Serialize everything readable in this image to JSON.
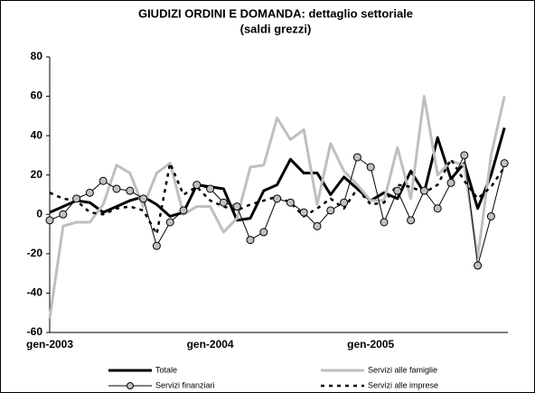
{
  "chart_data": {
    "type": "line",
    "title": "GIUDIZI ORDINI E DOMANDA: dettaglio settoriale",
    "subtitle": "(saldi grezzi)",
    "categories": [
      "gen-2003",
      null,
      null,
      null,
      null,
      null,
      null,
      null,
      null,
      null,
      null,
      null,
      "gen-2004",
      null,
      null,
      null,
      null,
      null,
      null,
      null,
      null,
      null,
      null,
      null,
      "gen-2005",
      null,
      null,
      null,
      null,
      null,
      null,
      null,
      null,
      null,
      null
    ],
    "ylim": [
      -60,
      80
    ],
    "yticks": [
      -60,
      -40,
      -20,
      0,
      20,
      40,
      60,
      80
    ],
    "grid": false,
    "legend": "bottom",
    "series": [
      {
        "name": "Totale",
        "color": "#000000",
        "width": 3,
        "dashed": false,
        "marker": false,
        "values": [
          1,
          4,
          7,
          6,
          1,
          4,
          7,
          9,
          5,
          -1,
          1,
          15,
          14,
          13,
          -3,
          -2,
          12,
          15,
          28,
          21,
          21,
          10,
          19,
          13,
          7,
          11,
          8,
          22,
          11,
          39,
          18,
          26,
          3,
          20,
          44
        ]
      },
      {
        "name": "Servizi alle famiglie",
        "color": "#bfbfbf",
        "width": 3,
        "dashed": false,
        "marker": false,
        "values": [
          -53,
          -6,
          -4,
          -4,
          5,
          25,
          21,
          4,
          21,
          26,
          0,
          4,
          4,
          -9,
          -2,
          24,
          25,
          49,
          38,
          43,
          5,
          36,
          22,
          15,
          7,
          7,
          34,
          8,
          60,
          20,
          27,
          25,
          -22,
          30,
          60
        ]
      },
      {
        "name": "Servizi finanziari",
        "color": "#000000",
        "width": 1,
        "dashed": false,
        "marker": true,
        "values": [
          -3,
          0,
          8,
          11,
          17,
          13,
          12,
          8,
          -16,
          -4,
          2,
          15,
          13,
          6,
          4,
          -13,
          -9,
          8,
          6,
          1,
          -6,
          2,
          6,
          29,
          24,
          -4,
          12,
          -3,
          12,
          3,
          16,
          30,
          -26,
          -1,
          26
        ]
      },
      {
        "name": "Servizi alle imprese",
        "color": "#000000",
        "width": 2.5,
        "dashed": true,
        "marker": false,
        "values": [
          11,
          8,
          7,
          1,
          0,
          3,
          4,
          2,
          -10,
          26,
          10,
          14,
          7,
          4,
          2,
          5,
          7,
          9,
          6,
          -1,
          3,
          8,
          3,
          13,
          5,
          6,
          15,
          14,
          11,
          15,
          28,
          17,
          8,
          14,
          24
        ]
      }
    ]
  }
}
